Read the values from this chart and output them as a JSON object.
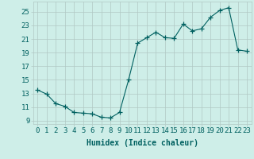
{
  "x": [
    0,
    1,
    2,
    3,
    4,
    5,
    6,
    7,
    8,
    9,
    10,
    11,
    12,
    13,
    14,
    15,
    16,
    17,
    18,
    19,
    20,
    21,
    22,
    23
  ],
  "y": [
    13.5,
    12.9,
    11.5,
    11.1,
    10.2,
    10.1,
    10.0,
    9.5,
    9.4,
    10.2,
    15.0,
    20.4,
    21.2,
    22.0,
    21.2,
    21.1,
    23.2,
    22.2,
    22.5,
    24.2,
    25.2,
    25.6,
    19.4,
    19.2
  ],
  "line_color": "#006060",
  "marker": "+",
  "marker_size": 4,
  "bg_color": "#ceeee8",
  "grid_color": "#b0c8c4",
  "xlabel": "Humidex (Indice chaleur)",
  "xlim": [
    -0.5,
    23.5
  ],
  "ylim": [
    8.5,
    26.5
  ],
  "yticks": [
    9,
    11,
    13,
    15,
    17,
    19,
    21,
    23,
    25
  ],
  "xticks": [
    0,
    1,
    2,
    3,
    4,
    5,
    6,
    7,
    8,
    9,
    10,
    11,
    12,
    13,
    14,
    15,
    16,
    17,
    18,
    19,
    20,
    21,
    22,
    23
  ],
  "xlabel_fontsize": 7,
  "tick_fontsize": 6.5,
  "label_color": "#006060",
  "xlabel_fontweight": "bold"
}
